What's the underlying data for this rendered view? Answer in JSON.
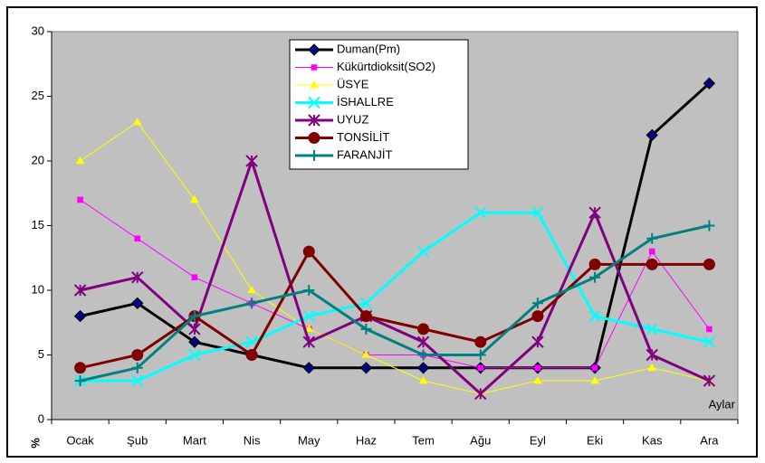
{
  "chart_data": {
    "type": "line",
    "categories": [
      "Ocak",
      "Şub",
      "Mart",
      "Nis",
      "May",
      "Haz",
      "Tem",
      "Ağu",
      "Eyl",
      "Eki",
      "Kas",
      "Ara"
    ],
    "y_label": "%",
    "x_label": "Aylar",
    "ylim": [
      0,
      30
    ],
    "yticks": [
      0,
      5,
      10,
      15,
      20,
      25,
      30
    ],
    "legend_position": "top",
    "series": [
      {
        "name": "Duman(Pm)",
        "color": "#000000",
        "marker": "diamond",
        "marker_color": "#000080",
        "width": 3,
        "values": [
          8,
          9,
          6,
          5,
          4,
          4,
          4,
          4,
          4,
          4,
          22,
          26
        ]
      },
      {
        "name": "Kükürtdioksit(SO2)",
        "color": "#ff00ff",
        "marker": "square",
        "marker_color": "#ff00ff",
        "width": 1,
        "values": [
          17,
          14,
          11,
          9,
          7,
          5,
          5,
          4,
          4,
          4,
          13,
          7
        ]
      },
      {
        "name": "ÜSYE",
        "color": "#ffff00",
        "marker": "triangle",
        "marker_color": "#ffff00",
        "width": 1,
        "values": [
          20,
          23,
          17,
          10,
          7,
          5,
          3,
          2,
          3,
          3,
          4,
          3
        ]
      },
      {
        "name": "İSHALLRE",
        "color": "#00ffff",
        "marker": "x",
        "marker_color": "#00ffff",
        "width": 3,
        "values": [
          3,
          3,
          5,
          6,
          8,
          9,
          13,
          16,
          16,
          8,
          7,
          6
        ]
      },
      {
        "name": "UYUZ",
        "color": "#800080",
        "marker": "star",
        "marker_color": "#800080",
        "width": 3,
        "values": [
          10,
          11,
          7,
          20,
          6,
          8,
          6,
          2,
          6,
          16,
          5,
          3
        ]
      },
      {
        "name": "TONSİLİT",
        "color": "#800000",
        "marker": "circle",
        "marker_color": "#800000",
        "width": 3,
        "values": [
          4,
          5,
          8,
          5,
          13,
          8,
          7,
          6,
          8,
          12,
          12,
          12
        ]
      },
      {
        "name": "FARANJİT",
        "color": "#008080",
        "marker": "plus",
        "marker_color": "#008080",
        "width": 3,
        "values": [
          3,
          4,
          8,
          9,
          10,
          7,
          5,
          5,
          9,
          11,
          14,
          15
        ]
      }
    ]
  }
}
